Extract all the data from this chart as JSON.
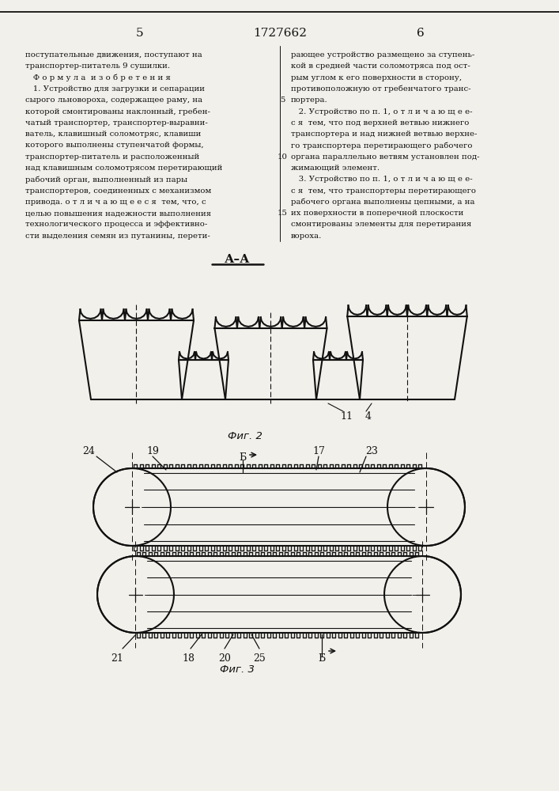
{
  "patent_number": "1727662",
  "page_left": "5",
  "page_right": "6",
  "bg_color": "#f2f0eb",
  "line_color": "#111111",
  "text_color": "#111111",
  "text_left_lines": [
    "поступательные движения, поступают на",
    "транспортер-питатель 9 сушилки.",
    "   Ф о р м у л а  и з о б р е т е н и я",
    "   1. Устройство для загрузки и сепарации",
    "сырого льновороха, содержащее раму, на",
    "которой смонтированы наклонный, гребен-",
    "чатый транспортер, транспортер-выравни-",
    "ватель, клавишный соломотряс, клавиши",
    "которого выполнены ступенчатой формы,",
    "транспортер-питатель и расположенный",
    "над клавишным соломотрясом перетирающий",
    "рабочий орган, выполненный из пары",
    "транспортеров, соединенных с механизмом",
    "привода. о т л и ч а ю щ е е с я  тем, что, с",
    "целью повышения надежности выполнения",
    "технологического процесса и эффективно-",
    "сти выделения семян из путанины, перети-"
  ],
  "text_right_lines": [
    "рающее устройство размещено за ступень-",
    "кой в средней части соломотряса под ост-",
    "рым углом к его поверхности в сторону,",
    "противоположную от гребенчатого транс-",
    "портера.",
    "   2. Устройство по п. 1, о т л и ч а ю щ е е-",
    "с я  тем, что под верхней ветвью нижнего",
    "транспортера и над нижней ветвью верхне-",
    "го транспортера перетирающего рабочего",
    "органа параллельно ветвям установлен под-",
    "жимающий элемент.",
    "   3. Устройство по п. 1, о т л и ч а ю щ е е-",
    "с я  тем, что транспортеры перетирающего",
    "рабочего органа выполнены цепными, а на",
    "их поверхности в поперечной плоскости",
    "смонтированы элементы для перетирания",
    "вороха."
  ]
}
